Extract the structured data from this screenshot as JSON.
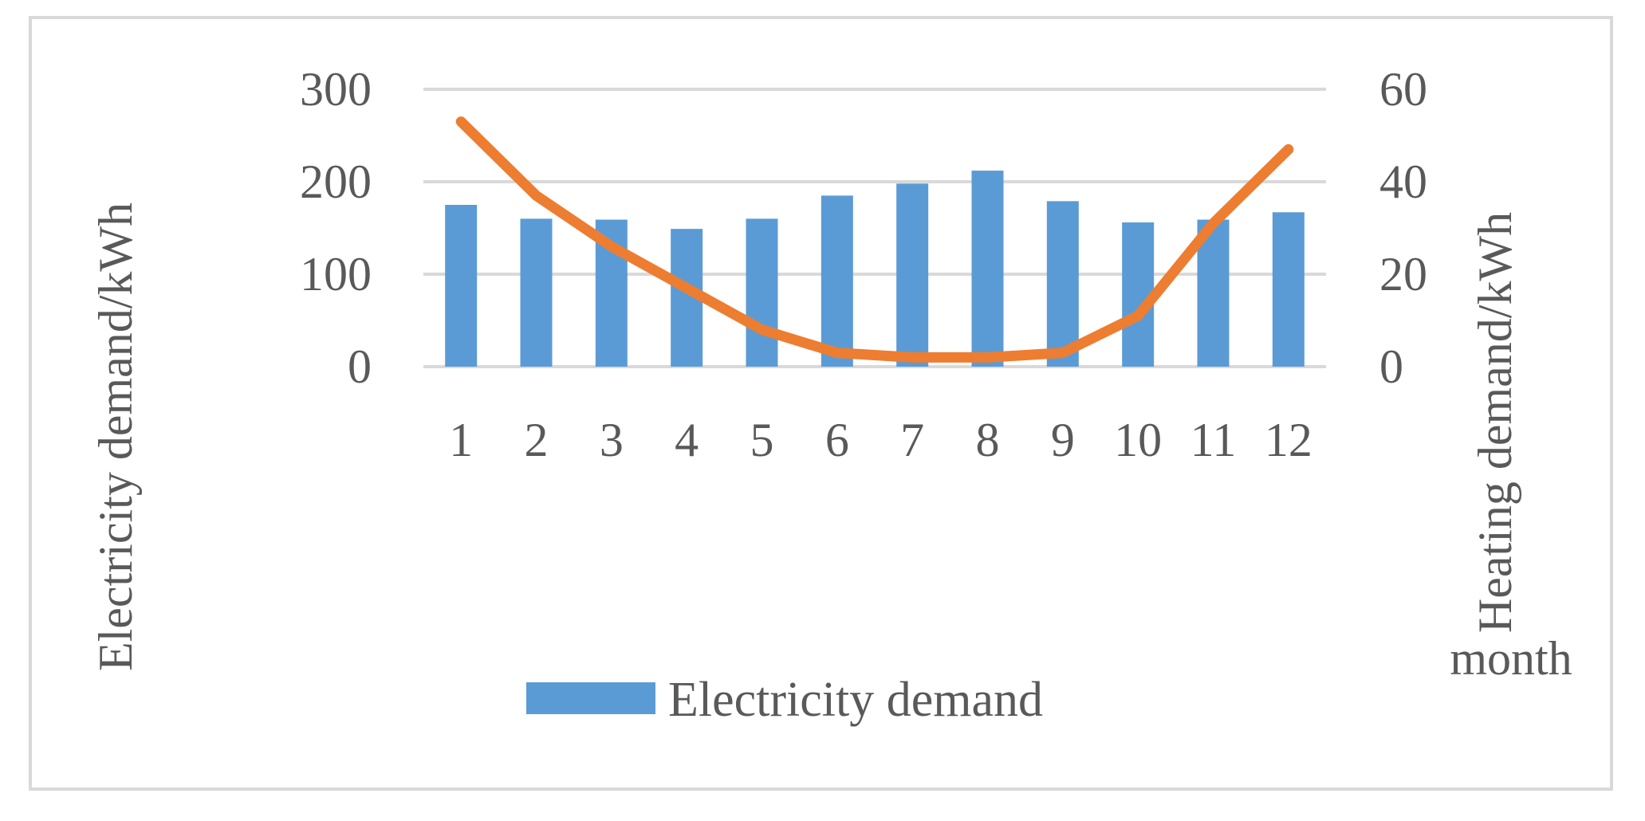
{
  "chart_data": {
    "type": "bar",
    "categories": [
      "1",
      "2",
      "3",
      "4",
      "5",
      "6",
      "7",
      "8",
      "9",
      "10",
      "11",
      "12"
    ],
    "series": [
      {
        "name": "Electricity demand",
        "type": "bar",
        "axis": "left",
        "color": "#5b9bd5",
        "values": [
          175,
          160,
          159,
          149,
          160,
          185,
          198,
          212,
          179,
          156,
          159,
          167
        ]
      },
      {
        "type": "line",
        "axis": "right",
        "color": "#ed7d31",
        "values": [
          53,
          37,
          26,
          17,
          8,
          3,
          2,
          2,
          3,
          11,
          31,
          47
        ]
      }
    ],
    "ylabel": "Electricity demand/kWh",
    "y2label": "Heating demand/kWh",
    "xlabel": "month",
    "ylim": [
      0,
      300
    ],
    "y2lim": [
      0,
      60
    ],
    "yticks": [
      "0",
      "100",
      "200",
      "300"
    ],
    "y2ticks": [
      "0",
      "20",
      "40",
      "60"
    ],
    "grid": true,
    "legend_position": "bottom",
    "gridColor": "#d9d9d9"
  }
}
